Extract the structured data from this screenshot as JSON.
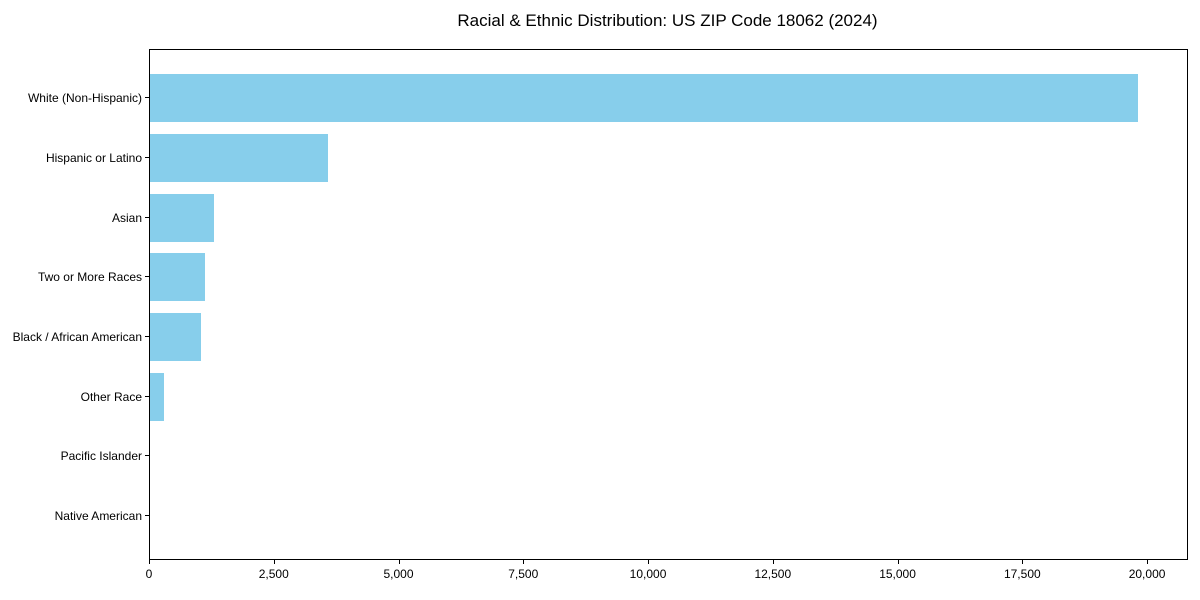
{
  "chart_data": {
    "type": "bar",
    "orientation": "horizontal",
    "title": "Racial & Ethnic Distribution: US ZIP Code 18062 (2024)",
    "categories": [
      "White (Non-Hispanic)",
      "Hispanic or Latino",
      "Asian",
      "Two or More Races",
      "Black / African American",
      "Other Race",
      "Pacific Islander",
      "Native American"
    ],
    "values": [
      19800,
      3560,
      1290,
      1110,
      1020,
      290,
      0,
      0
    ],
    "xlabel": "",
    "ylabel": "",
    "xlim": [
      0,
      20780
    ],
    "xticks": [
      0,
      2500,
      5000,
      7500,
      10000,
      12500,
      15000,
      17500,
      20000
    ],
    "xtick_labels": [
      "0",
      "2,500",
      "5,000",
      "7,500",
      "10,000",
      "12,500",
      "15,000",
      "17,500",
      "20,000"
    ],
    "bar_color": "#87CEEB",
    "axis_color": "#000000",
    "text_color": "#000000",
    "background_color": "#ffffff",
    "grid": false,
    "legend": null
  }
}
